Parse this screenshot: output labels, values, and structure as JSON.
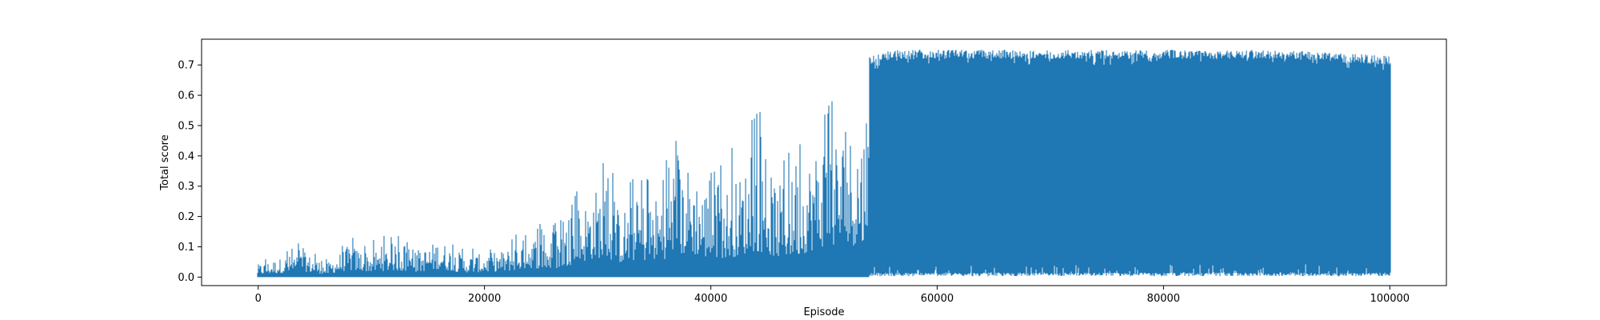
{
  "chart_data": {
    "type": "area",
    "title": "",
    "xlabel": "Episode",
    "ylabel": "Total score",
    "xlim": [
      -5000,
      105000
    ],
    "ylim": [
      -0.028,
      0.785
    ],
    "grid": false,
    "series_color": "#1f77b4",
    "x_ticks": [
      0,
      20000,
      40000,
      60000,
      80000,
      100000
    ],
    "x_tick_labels": [
      "0",
      "20000",
      "40000",
      "60000",
      "80000",
      "100000"
    ],
    "y_ticks": [
      0.0,
      0.1,
      0.2,
      0.3,
      0.4,
      0.5,
      0.6,
      0.7
    ],
    "y_tick_labels": [
      "0.0",
      "0.1",
      "0.2",
      "0.3",
      "0.4",
      "0.5",
      "0.6",
      "0.7"
    ],
    "series": [
      {
        "x": [
          0,
          2000,
          4000,
          6000,
          8000,
          10000,
          12000,
          14000,
          16000,
          18000,
          20000,
          22000,
          24000,
          26000,
          28000,
          30000,
          32000,
          34000,
          36000,
          38000,
          40000,
          42000,
          44000,
          46000,
          48000,
          50000,
          52000,
          54000,
          56000,
          60000,
          70000,
          80000,
          90000,
          100000
        ],
        "upper": [
          0.06,
          0.09,
          0.12,
          0.06,
          0.15,
          0.12,
          0.15,
          0.11,
          0.18,
          0.1,
          0.11,
          0.13,
          0.2,
          0.17,
          0.29,
          0.43,
          0.32,
          0.36,
          0.4,
          0.53,
          0.4,
          0.44,
          0.58,
          0.43,
          0.5,
          0.68,
          0.68,
          0.73,
          0.75,
          0.75,
          0.75,
          0.75,
          0.75,
          0.73
        ],
        "baseline_min": 0.0,
        "baseline_max_after_55000": 0.045
      }
    ]
  }
}
